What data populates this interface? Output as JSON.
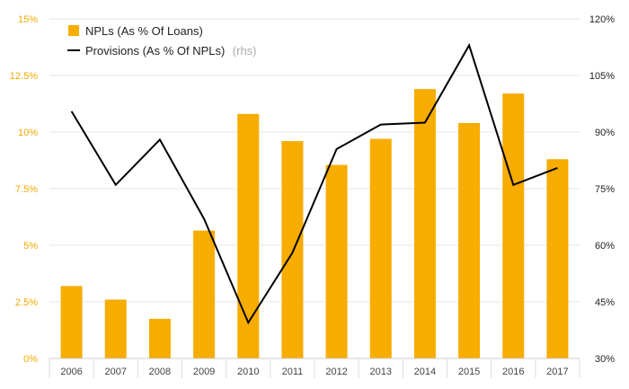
{
  "chart_data": {
    "type": "bar+line",
    "categories": [
      "2006",
      "2007",
      "2008",
      "2009",
      "2010",
      "2011",
      "2012",
      "2013",
      "2014",
      "2015",
      "2016",
      "2017"
    ],
    "series": [
      {
        "name": "NPLs (As % Of Loans)",
        "type": "bar",
        "axis": "left",
        "color": "#f7ac00",
        "values": [
          3.2,
          2.6,
          1.75,
          5.65,
          10.8,
          9.6,
          8.55,
          9.7,
          11.9,
          10.4,
          11.7,
          8.8
        ]
      },
      {
        "name": "Provisions (As % Of NPLs)",
        "type": "line",
        "axis": "right",
        "color": "#000000",
        "values": [
          95.5,
          76,
          88,
          67,
          39.5,
          58,
          85.5,
          92,
          92.5,
          113,
          76,
          80.5
        ]
      }
    ],
    "legend": {
      "rhs_suffix": "(rhs)",
      "placement": "top-left"
    },
    "left_axis": {
      "ylim": [
        0,
        15
      ],
      "ticks": [
        "0%",
        "2.5%",
        "5%",
        "7.5%",
        "10%",
        "12.5%",
        "15%"
      ],
      "color": "#f2a900"
    },
    "right_axis": {
      "ylim": [
        30,
        120
      ],
      "ticks": [
        "30%",
        "45%",
        "60%",
        "75%",
        "90%",
        "105%",
        "120%"
      ]
    },
    "grid": true
  }
}
